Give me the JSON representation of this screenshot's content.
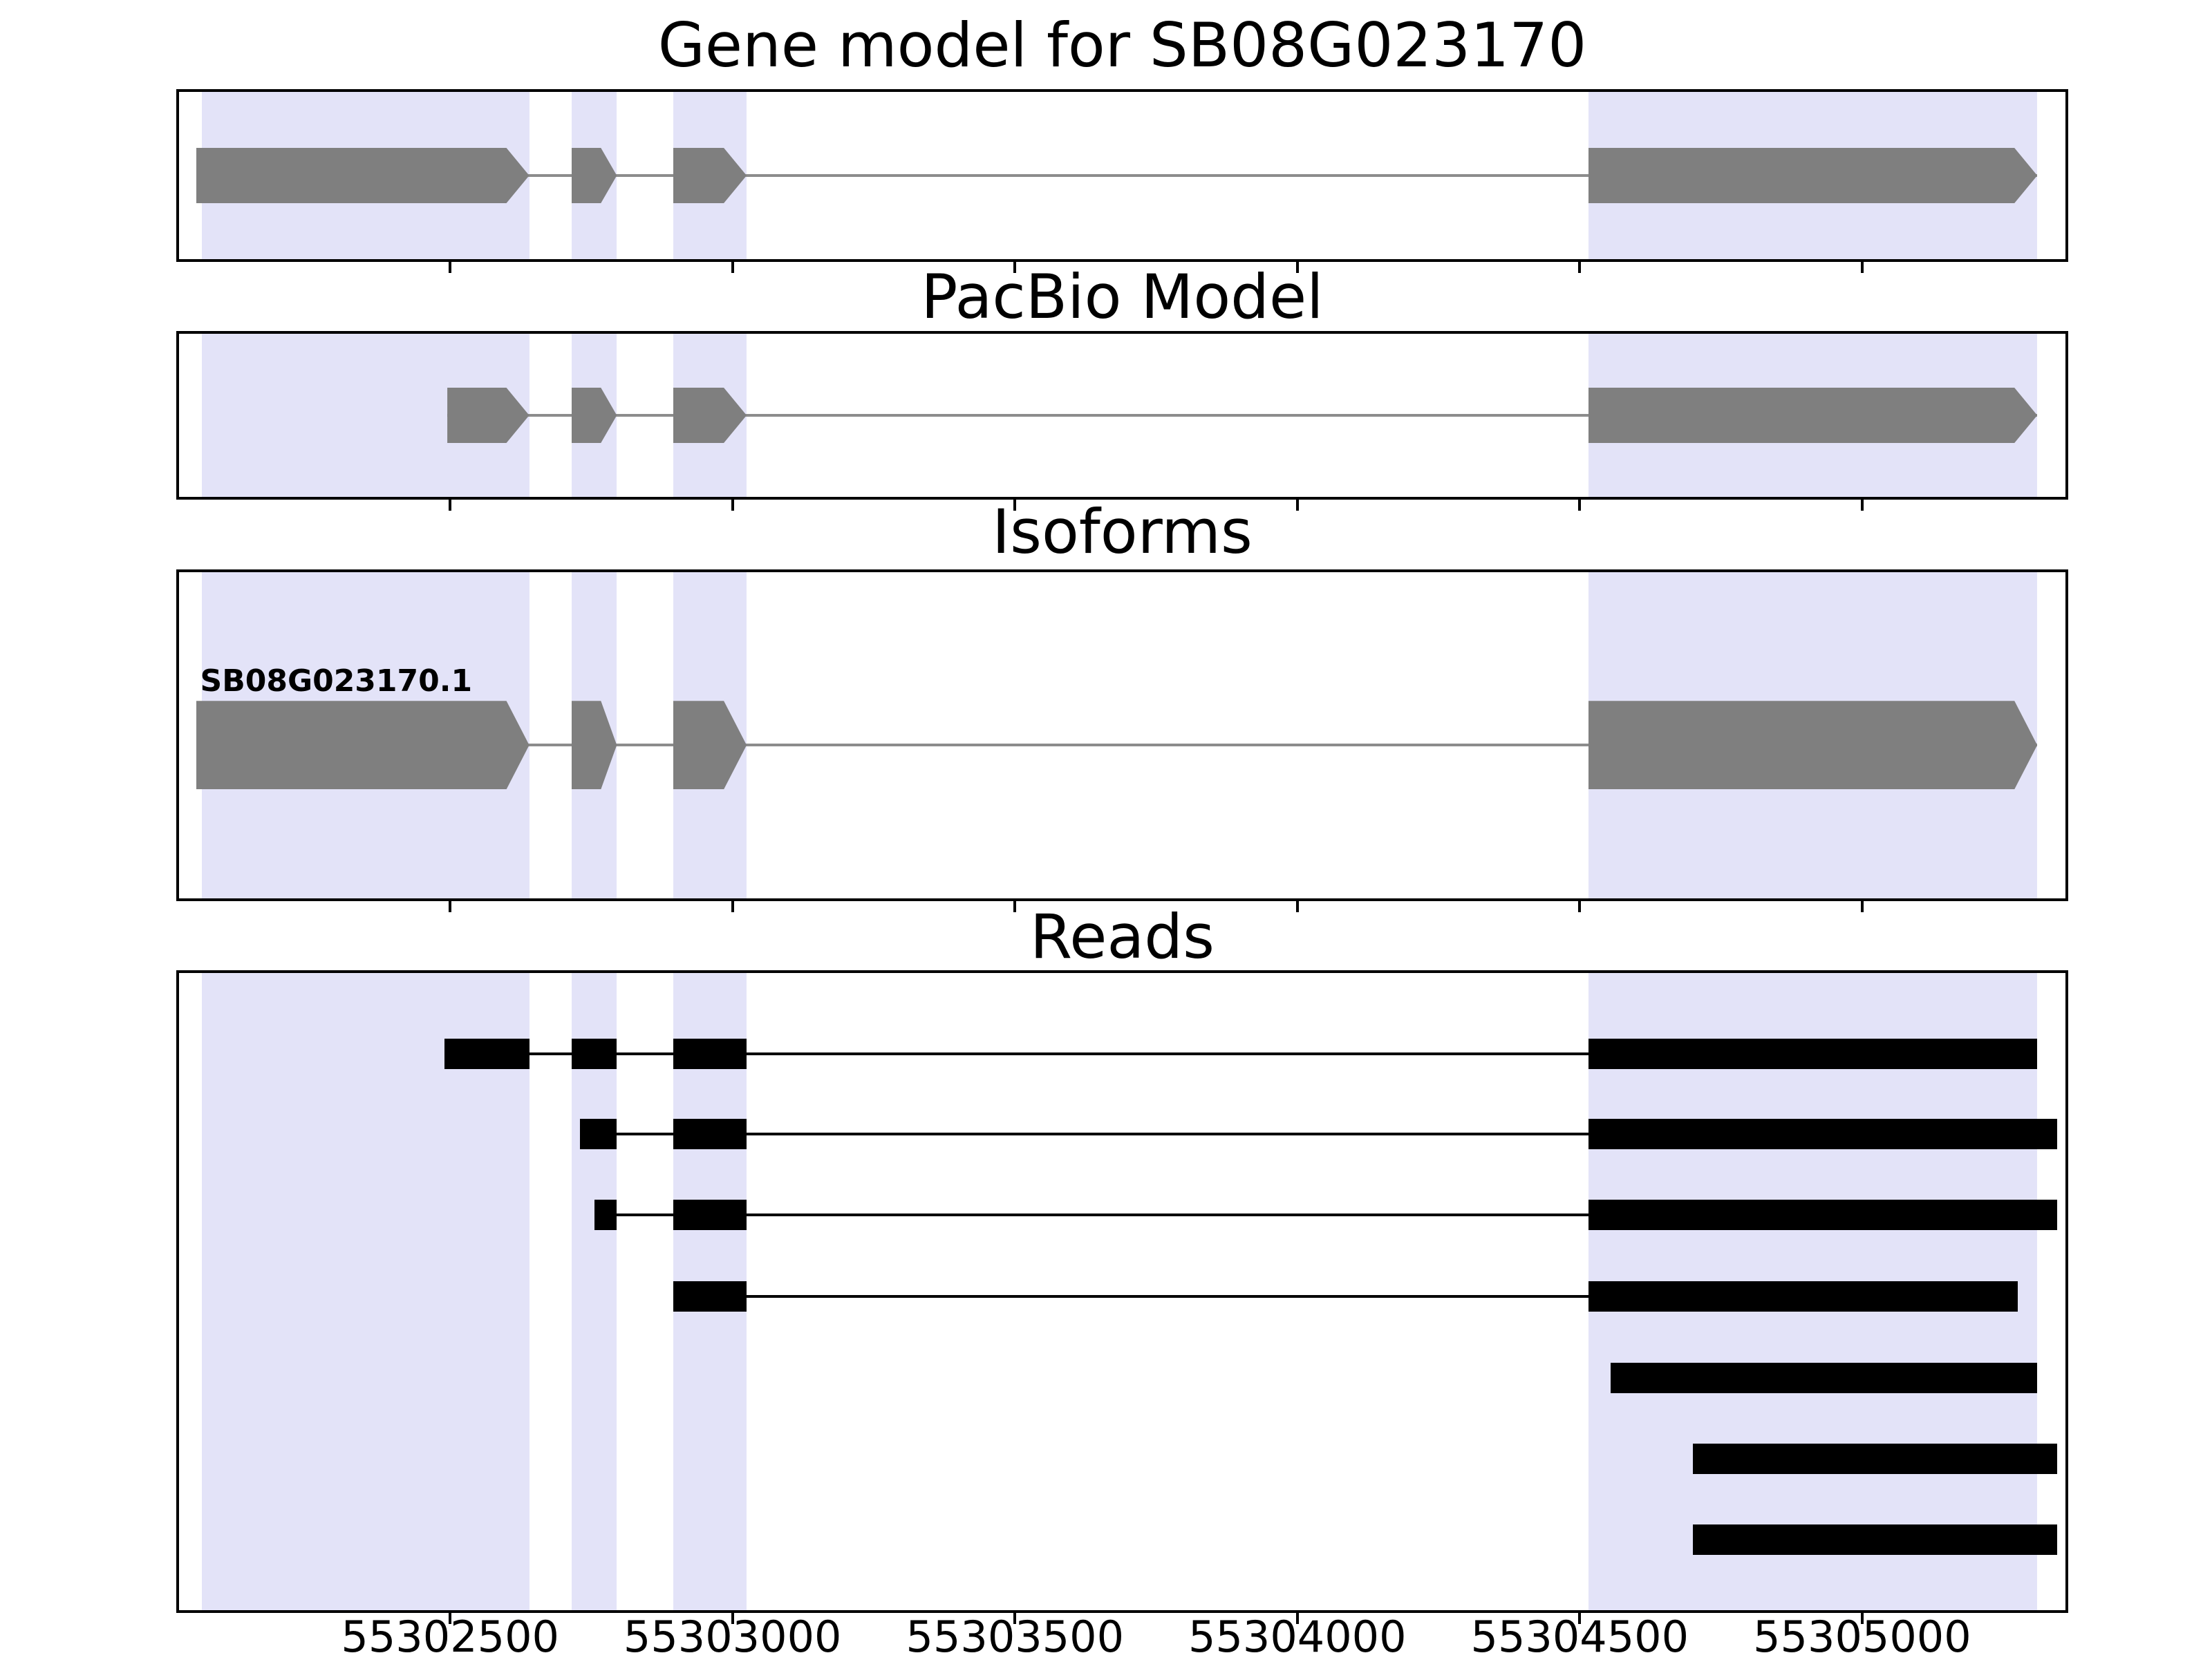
{
  "figure": {
    "background": "#ffffff"
  },
  "colors": {
    "exon_fill": "#7f7f7f",
    "read_fill": "#000000",
    "highlight_fill": "#e3e3f8",
    "spine": "#000000",
    "model_intron_line": "#8c8c8c",
    "read_intron_line": "#000000",
    "title_color": "#000000"
  },
  "chart_data": {
    "type": "genome-tracks",
    "x_range": [
      55302020,
      55305360
    ],
    "xticks": [
      55302500,
      55303000,
      55303500,
      55304000,
      55304500,
      55305000
    ],
    "xtick_labels": [
      "55302500",
      "55303000",
      "55303500",
      "55304000",
      "55304500",
      "55305000"
    ],
    "grid": false,
    "legend": null,
    "highlight_regions": [
      [
        55302060,
        55302640
      ],
      [
        55302715,
        55302795
      ],
      [
        55302895,
        55303025
      ],
      [
        55304515,
        55305310
      ]
    ],
    "tracks": [
      {
        "title": "Gene model for SB08G023170",
        "kind": "model",
        "features": [
          {
            "name": "",
            "strand": "+",
            "exons": [
              [
                55302050,
                55302640
              ],
              [
                55302715,
                55302795
              ],
              [
                55302895,
                55303025
              ],
              [
                55304515,
                55305310
              ]
            ]
          }
        ]
      },
      {
        "title": "PacBio Model",
        "kind": "model",
        "features": [
          {
            "name": "",
            "strand": "+",
            "exons": [
              [
                55302495,
                55302640
              ],
              [
                55302715,
                55302795
              ],
              [
                55302895,
                55303025
              ],
              [
                55304515,
                55305310
              ]
            ]
          }
        ]
      },
      {
        "title": "Isoforms",
        "kind": "isoforms",
        "features": [
          {
            "name": "SB08G023170.1",
            "strand": "+",
            "exons": [
              [
                55302050,
                55302640
              ],
              [
                55302715,
                55302795
              ],
              [
                55302895,
                55303025
              ],
              [
                55304515,
                55305310
              ]
            ]
          }
        ]
      },
      {
        "title": "Reads",
        "kind": "reads",
        "features": [
          {
            "exons": [
              [
                55302490,
                55302640
              ],
              [
                55302715,
                55302795
              ],
              [
                55302895,
                55303025
              ],
              [
                55304515,
                55305310
              ]
            ]
          },
          {
            "exons": [
              [
                55302730,
                55302795
              ],
              [
                55302895,
                55303025
              ],
              [
                55304515,
                55305345
              ]
            ]
          },
          {
            "exons": [
              [
                55302755,
                55302795
              ],
              [
                55302895,
                55303025
              ],
              [
                55304515,
                55305345
              ]
            ]
          },
          {
            "exons": [
              [
                55302895,
                55303025
              ],
              [
                55304515,
                55305275
              ]
            ]
          },
          {
            "exons": [
              [
                55304555,
                55305310
              ]
            ]
          },
          {
            "exons": [
              [
                55304700,
                55305345
              ]
            ]
          },
          {
            "exons": [
              [
                55304700,
                55305345
              ]
            ]
          }
        ]
      }
    ]
  }
}
